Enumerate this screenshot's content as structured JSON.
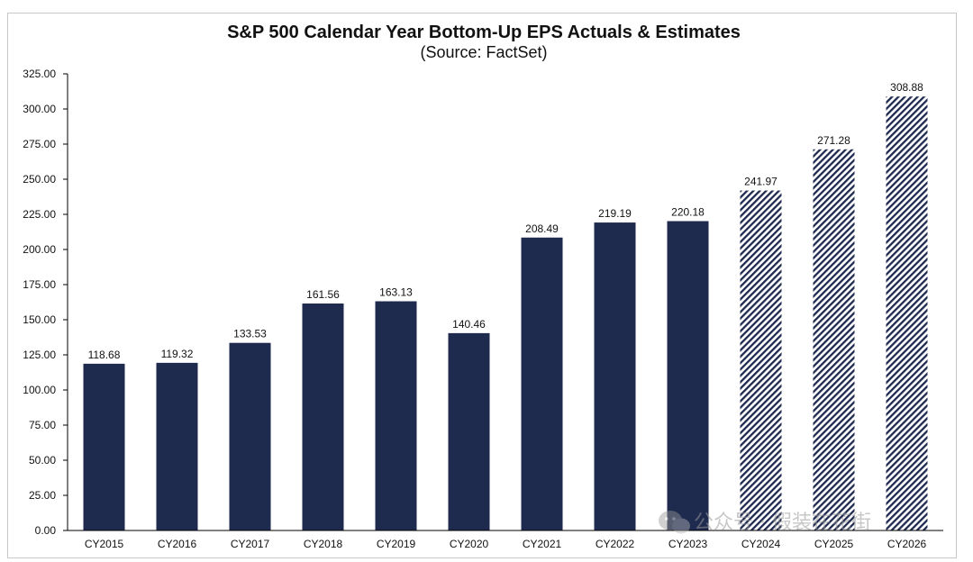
{
  "chart_data": {
    "type": "bar",
    "title": "S&P 500 Calendar Year Bottom-Up EPS Actuals & Estimates",
    "subtitle": "(Source: FactSet)",
    "categories": [
      "CY2015",
      "CY2016",
      "CY2017",
      "CY2018",
      "CY2019",
      "CY2020",
      "CY2021",
      "CY2022",
      "CY2023",
      "CY2024",
      "CY2025",
      "CY2026"
    ],
    "values": [
      118.68,
      119.32,
      133.53,
      161.56,
      163.13,
      140.46,
      208.49,
      219.19,
      220.18,
      241.97,
      271.28,
      308.88
    ],
    "value_labels": [
      "118.68",
      "119.32",
      "133.53",
      "161.56",
      "163.13",
      "140.46",
      "208.49",
      "219.19",
      "220.18",
      "241.97",
      "271.28",
      "308.88"
    ],
    "bar_style": [
      "solid",
      "solid",
      "solid",
      "solid",
      "solid",
      "solid",
      "solid",
      "solid",
      "solid",
      "hatched",
      "hatched",
      "hatched"
    ],
    "ylim": [
      0,
      325
    ],
    "yticks": [
      "0.00",
      "25.00",
      "50.00",
      "75.00",
      "100.00",
      "125.00",
      "150.00",
      "175.00",
      "200.00",
      "225.00",
      "250.00",
      "275.00",
      "300.00",
      "325.00"
    ],
    "xlabel": "",
    "ylabel": "",
    "grid": false,
    "legend": "none",
    "colors": {
      "bar": "#1f2a4f",
      "hatch_background": "#ffffff",
      "axis": "#000000",
      "text": "#111111"
    }
  },
  "watermark": {
    "text": "公众号 · 假装在花街"
  }
}
